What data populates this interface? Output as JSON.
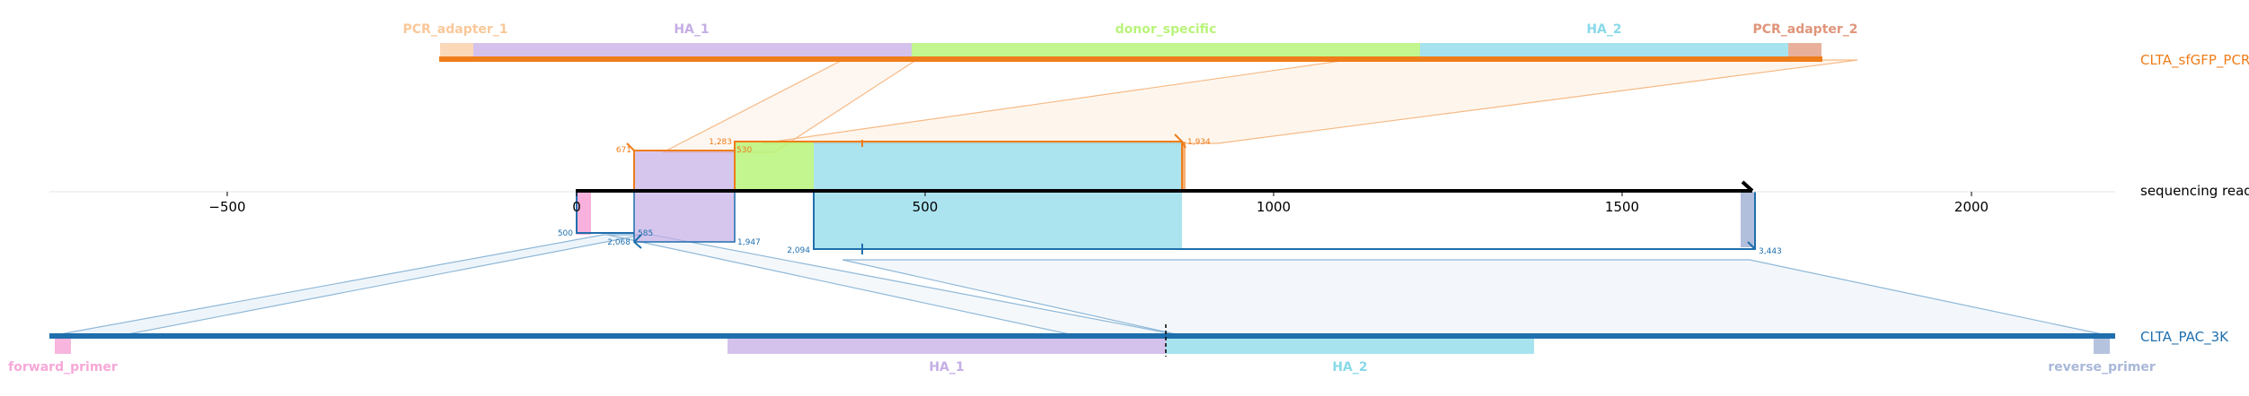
{
  "donor": {
    "name": "CLTA_sfGFP_PCR",
    "color": "#ef7d1a",
    "features": [
      {
        "label": "PCR_adapter_1",
        "color": "#f9c89a"
      },
      {
        "label": "HA_1",
        "color": "#c5aee6"
      },
      {
        "label": "donor_specific",
        "color": "#b9f47a"
      },
      {
        "label": "HA_2",
        "color": "#88d9e8"
      },
      {
        "label": "PCR_adapter_2",
        "color": "#e0957a"
      }
    ]
  },
  "read": {
    "name": "sequencing read",
    "axis_ticks": [
      "−500",
      "0",
      "500",
      "1000",
      "1500",
      "2000"
    ],
    "alignments_top": [
      {
        "start": "671",
        "end": "530",
        "color": "#ef7d1a"
      },
      {
        "start": "1,283",
        "end": "1,934",
        "color": "#ef7d1a"
      }
    ],
    "alignments_bottom": [
      {
        "start": "500",
        "end": "585",
        "color": "#1f6fad"
      },
      {
        "start": "2,068",
        "end": "1,947",
        "color": "#1f6fad"
      },
      {
        "start": "2,094",
        "end": "3,443",
        "color": "#1f6fad"
      }
    ]
  },
  "target": {
    "name": "CLTA_PAC_3K",
    "color": "#1f6fad",
    "features": [
      {
        "label": "forward_primer",
        "color": "#f7a8d8"
      },
      {
        "label": "HA_1",
        "color": "#c5aee6"
      },
      {
        "label": "HA_2",
        "color": "#88d9e8"
      },
      {
        "label": "reverse_primer",
        "color": "#a9b8d8"
      }
    ]
  }
}
